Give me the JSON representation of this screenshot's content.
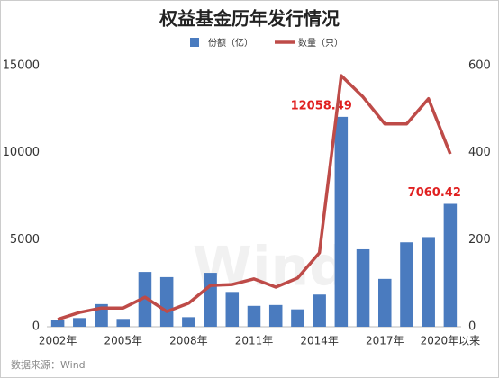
{
  "chart_data": {
    "type": "bar",
    "title": "权益基金历年发行情况",
    "categories": [
      "2002年",
      null,
      null,
      "2005年",
      null,
      null,
      "2008年",
      null,
      null,
      "2011年",
      null,
      null,
      "2014年",
      null,
      null,
      "2017年",
      null,
      null,
      "2020年以来"
    ],
    "series": [
      {
        "name": "份额（亿）",
        "color": "#4a7bbf",
        "type": "bar",
        "values": [
          400,
          500,
          1300,
          450,
          3150,
          2850,
          550,
          3100,
          2000,
          1200,
          1250,
          1000,
          1850,
          12058.49,
          4450,
          2750,
          4850,
          5150,
          7060.42
        ],
        "value_labels": [
          null,
          null,
          null,
          null,
          null,
          null,
          null,
          null,
          null,
          null,
          null,
          null,
          null,
          "12058.49",
          null,
          null,
          null,
          null,
          "7060.42"
        ]
      },
      {
        "name": "数量（只）",
        "color": "#be4b48",
        "type": "line",
        "axis": "y2",
        "values": [
          17,
          33,
          43,
          43,
          68,
          35,
          54,
          95,
          97,
          110,
          91,
          112,
          170,
          577,
          528,
          466,
          466,
          524,
          397
        ]
      }
    ],
    "ylim": [
      0,
      15000
    ],
    "yticks": [
      0,
      5000,
      10000,
      15000
    ],
    "y2lim": [
      0,
      600
    ],
    "y2ticks": [
      0,
      200,
      400,
      600
    ],
    "legend": "top",
    "source": "数据来源：Wind",
    "watermark": "Wind"
  }
}
